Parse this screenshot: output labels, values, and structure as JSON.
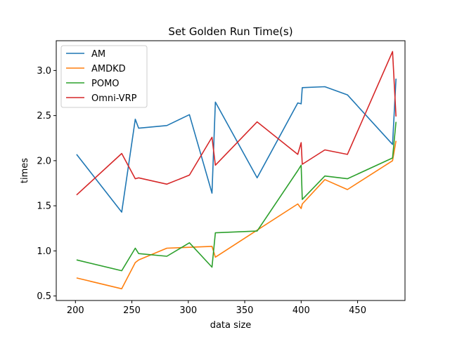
{
  "chart_data": {
    "type": "line",
    "title": "Set Golden Run Time(s)",
    "xlabel": "data size",
    "ylabel": "times",
    "xlim": [
      183,
      492
    ],
    "ylim": [
      0.45,
      3.33
    ],
    "xticks": [
      200,
      250,
      300,
      350,
      400,
      450
    ],
    "yticks": [
      0.5,
      1.0,
      1.5,
      2.0,
      2.5,
      3.0
    ],
    "xtick_labels": [
      "200",
      "250",
      "300",
      "350",
      "400",
      "450"
    ],
    "ytick_labels": [
      "0.5",
      "1.0",
      "1.5",
      "2.0",
      "2.5",
      "3.0"
    ],
    "grid": false,
    "legend_position": "upper-left",
    "x": [
      201,
      241,
      253,
      256,
      281,
      301,
      321,
      324,
      361,
      397,
      400,
      401,
      421,
      441,
      481,
      484
    ],
    "series": [
      {
        "name": "AM",
        "color": "#1f77b4",
        "values": [
          2.07,
          1.43,
          2.46,
          2.36,
          2.39,
          2.51,
          1.64,
          2.65,
          1.81,
          2.64,
          2.63,
          2.81,
          2.82,
          2.73,
          2.18,
          2.91
        ]
      },
      {
        "name": "AMDKD",
        "color": "#ff7f0e",
        "values": [
          0.7,
          0.58,
          0.87,
          0.9,
          1.03,
          1.04,
          1.05,
          0.93,
          1.23,
          1.52,
          1.47,
          1.52,
          1.79,
          1.68,
          2.0,
          2.22
        ]
      },
      {
        "name": "POMO",
        "color": "#2ca02c",
        "values": [
          0.9,
          0.78,
          1.03,
          0.97,
          0.94,
          1.09,
          0.82,
          1.2,
          1.22,
          1.89,
          1.95,
          1.57,
          1.83,
          1.8,
          2.03,
          2.43
        ]
      },
      {
        "name": "Omni-VRP",
        "color": "#d62728",
        "values": [
          1.62,
          2.08,
          1.8,
          1.81,
          1.74,
          1.84,
          2.26,
          1.95,
          2.43,
          2.07,
          2.2,
          1.96,
          2.12,
          2.07,
          3.21,
          2.49
        ]
      }
    ]
  }
}
